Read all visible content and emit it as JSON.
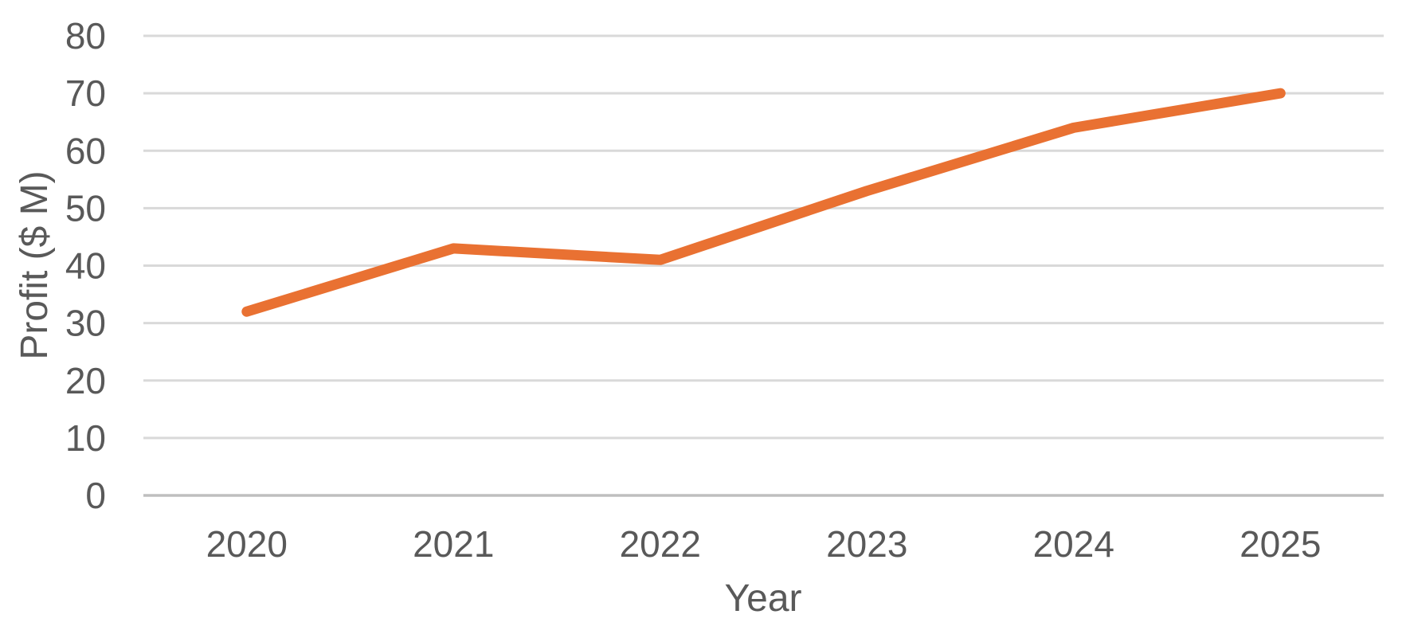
{
  "chart_data": {
    "type": "line",
    "categories": [
      "2020",
      "2021",
      "2022",
      "2023",
      "2024",
      "2025"
    ],
    "series": [
      {
        "name": "Profit",
        "values": [
          32,
          43,
          41,
          53,
          64,
          70
        ]
      }
    ],
    "title": "",
    "xlabel": "Year",
    "ylabel": "Profit ($ M)",
    "ylim": [
      0,
      80
    ],
    "ytick_step": 10,
    "yticks": [
      "0",
      "10",
      "20",
      "30",
      "40",
      "50",
      "60",
      "70",
      "80"
    ],
    "grid": "horizontal",
    "legend_position": "none",
    "colors": {
      "line": "#E97132",
      "gridline": "#D9D9D9",
      "axis_line": "#BFBFBF",
      "text": "#595959",
      "background": "#FFFFFF"
    }
  }
}
